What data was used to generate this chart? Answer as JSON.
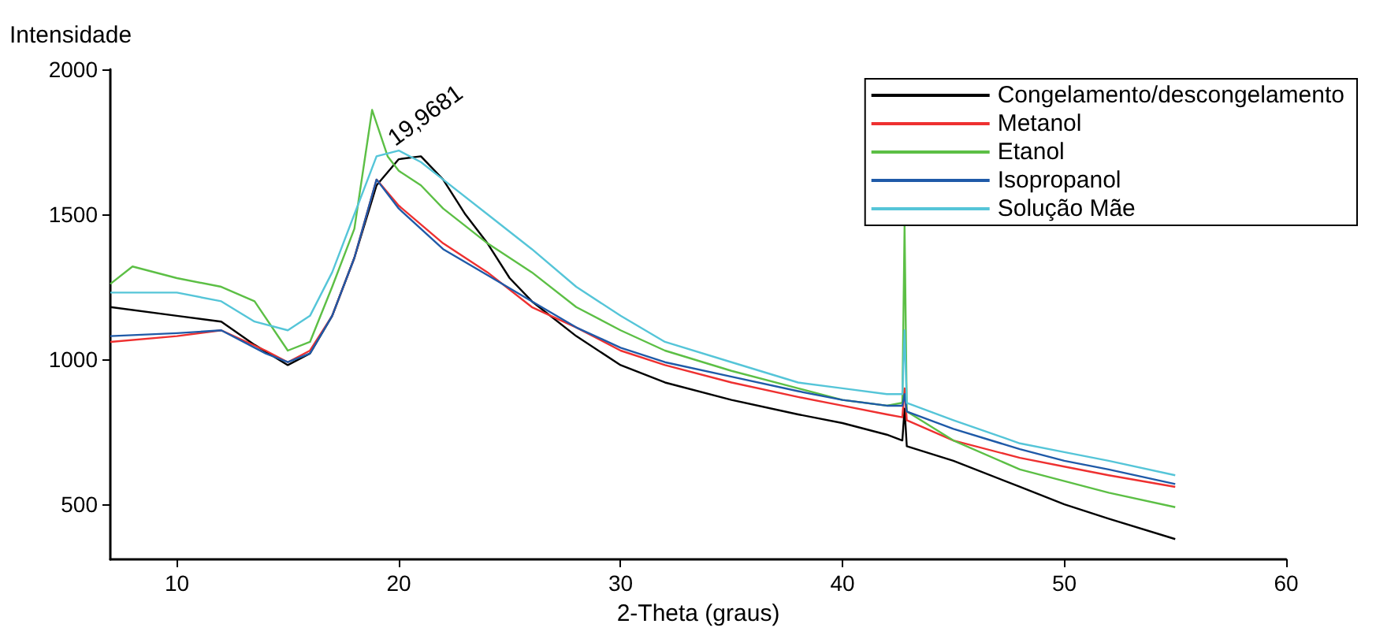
{
  "chart_data": {
    "type": "line",
    "xlabel": "2-Theta (graus)",
    "ylabel": "Intensidade",
    "xlim": [
      7,
      60
    ],
    "xticks": [
      10,
      20,
      30,
      40,
      50,
      60
    ],
    "ylim": [
      310,
      2000
    ],
    "yticks": [
      500,
      1000,
      1500,
      2000
    ],
    "grid": false,
    "legend": "top right",
    "marker": "none",
    "line_style": "solid",
    "annotations": [
      {
        "text": "19,9681",
        "x": 19.97,
        "y": 1720
      }
    ],
    "series": [
      {
        "name": "Congelamento/descongelamento",
        "color": "#000000",
        "x": [
          7,
          10,
          12,
          13.5,
          15,
          16,
          17,
          18,
          19,
          20,
          21,
          22,
          23,
          24,
          25,
          26,
          28,
          30,
          32,
          35,
          38,
          40,
          42,
          42.7,
          42.8,
          42.9,
          45,
          48,
          50,
          52,
          55
        ],
        "values": [
          1180,
          1150,
          1130,
          1050,
          980,
          1020,
          1150,
          1350,
          1600,
          1690,
          1700,
          1620,
          1500,
          1400,
          1280,
          1200,
          1080,
          980,
          920,
          860,
          810,
          780,
          740,
          720,
          830,
          700,
          650,
          560,
          500,
          450,
          380
        ]
      },
      {
        "name": "Metanol",
        "color": "#ee3030",
        "x": [
          7,
          10,
          12,
          14,
          15,
          16,
          17,
          18,
          19,
          20,
          22,
          24,
          26,
          28,
          30,
          32,
          35,
          38,
          40,
          42,
          42.7,
          42.8,
          42.9,
          45,
          48,
          50,
          52,
          55
        ],
        "values": [
          1060,
          1080,
          1100,
          1030,
          990,
          1030,
          1150,
          1350,
          1620,
          1530,
          1400,
          1300,
          1180,
          1110,
          1030,
          980,
          920,
          870,
          840,
          810,
          800,
          900,
          790,
          720,
          660,
          630,
          600,
          560
        ]
      },
      {
        "name": "Etanol",
        "color": "#5cbf45",
        "x": [
          7,
          8,
          10,
          12,
          13.5,
          15,
          16,
          17,
          18,
          18.8,
          19.5,
          20,
          21,
          22,
          24,
          26,
          28,
          30,
          32,
          35,
          38,
          40,
          42,
          42.7,
          42.8,
          42.9,
          45,
          48,
          50,
          52,
          55
        ],
        "values": [
          1260,
          1320,
          1280,
          1250,
          1200,
          1030,
          1060,
          1250,
          1450,
          1860,
          1700,
          1650,
          1600,
          1520,
          1400,
          1300,
          1180,
          1100,
          1030,
          960,
          900,
          860,
          840,
          850,
          1460,
          820,
          720,
          620,
          580,
          540,
          490
        ]
      },
      {
        "name": "Isopropanol",
        "color": "#1f5aa8",
        "x": [
          7,
          10,
          12,
          14,
          15,
          16,
          17,
          18,
          19,
          20,
          22,
          24,
          26,
          28,
          30,
          32,
          35,
          38,
          40,
          42,
          42.7,
          42.8,
          42.9,
          45,
          48,
          50,
          52,
          55
        ],
        "values": [
          1080,
          1090,
          1100,
          1020,
          990,
          1020,
          1150,
          1350,
          1620,
          1520,
          1380,
          1290,
          1200,
          1110,
          1040,
          990,
          940,
          890,
          860,
          840,
          840,
          880,
          820,
          760,
          690,
          650,
          620,
          570
        ]
      },
      {
        "name": "Solução Mãe",
        "color": "#55c5d8",
        "x": [
          7,
          10,
          12,
          13.5,
          15,
          16,
          17,
          18,
          19,
          20,
          21,
          22,
          24,
          26,
          28,
          30,
          32,
          35,
          38,
          40,
          42,
          42.7,
          42.8,
          42.9,
          45,
          48,
          50,
          52,
          55
        ],
        "values": [
          1230,
          1230,
          1200,
          1130,
          1100,
          1150,
          1300,
          1500,
          1700,
          1720,
          1680,
          1620,
          1500,
          1380,
          1250,
          1150,
          1060,
          990,
          920,
          900,
          880,
          880,
          1100,
          850,
          790,
          710,
          680,
          650,
          600
        ]
      }
    ]
  }
}
